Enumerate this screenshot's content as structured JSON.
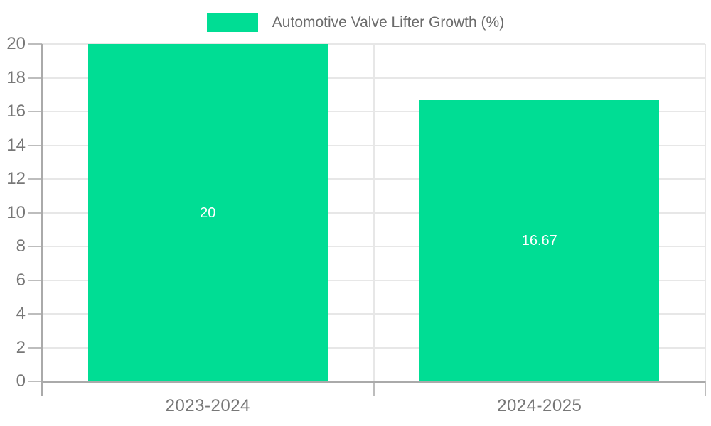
{
  "chart_data": {
    "type": "bar",
    "title": "",
    "legend": "Automotive Valve Lifter Growth (%)",
    "legend_position": "top",
    "categories": [
      "2023-2024",
      "2024-2025"
    ],
    "values": [
      20,
      16.67
    ],
    "data_labels": [
      "20",
      "16.67"
    ],
    "xlabel": "",
    "ylabel": "",
    "ylim": [
      0,
      20
    ],
    "yticks": [
      0,
      2,
      4,
      6,
      8,
      10,
      12,
      14,
      16,
      18,
      20
    ],
    "grid": true,
    "bar_color": "#00DD94",
    "data_label_color": "#FFFFFF"
  },
  "colors": {
    "background": "#FFFFFF",
    "bar": "#00DD94",
    "gridline": "#E7E7E7",
    "axis_line": "#AAAAAA",
    "tick_mark": "#BDBDBD",
    "tick_label": "#777777",
    "legend_text": "#6B6B6B",
    "data_label": "#FFFFFF"
  }
}
